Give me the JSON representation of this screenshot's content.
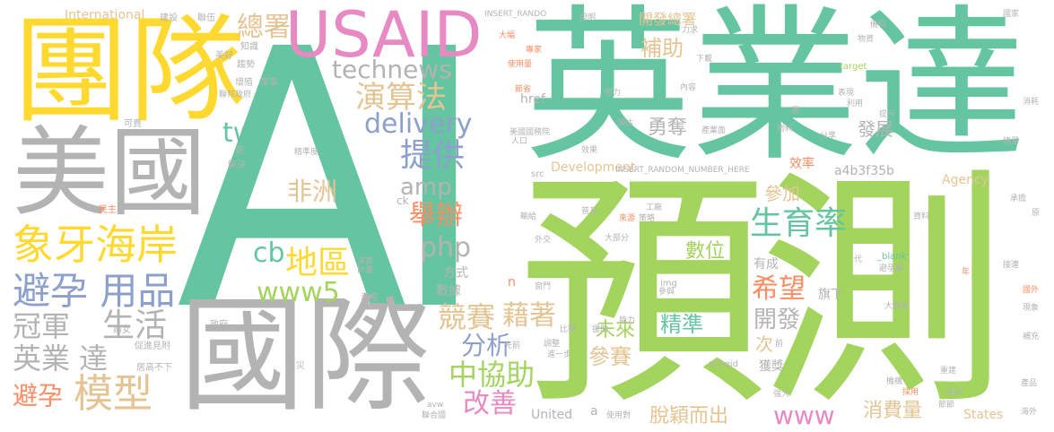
{
  "palette": {
    "teal": "#66c5a1",
    "green": "#a2d45e",
    "yellow": "#ffd92f",
    "gray": "#b3b3b3",
    "pink": "#e78ac3",
    "blue": "#8da0cb",
    "orange": "#fc8d62",
    "tan": "#e5c494"
  },
  "words": {
    "ai": "AI",
    "yingyeda": "英業達",
    "yuce": "預測",
    "tuandui": "團隊",
    "meiguo": "美國",
    "guoji": "國際",
    "usaid": "USAID",
    "xiangya": "象牙海岸",
    "biyun_yongpin": "避孕 用品",
    "guanjun": "冠軍",
    "shenghuo": "生活",
    "yingyeda2": "英業 達",
    "biyun": "避孕",
    "moxing": "模型",
    "zongshu": "總署",
    "technews": "technews",
    "suanfa": "演算法",
    "delivery": "delivery",
    "tw": "tw",
    "tigong": "提供",
    "feizhou": "非洲",
    "amp": "amp",
    "juban": "舉辦",
    "php": "php",
    "cb": "cb",
    "diqu": "地區",
    "www5": "www5",
    "jingsai": "競賽",
    "jiezhe": "藉著",
    "fenxi": "分析",
    "xiezhu": "中協助",
    "gaishan": "改善",
    "buzhu": "補助",
    "yongduo": "勇奪",
    "shengyulv": "生育率",
    "xiwang": "希望",
    "kaifa": "開發",
    "jingzhun": "精準",
    "shuwei": "數位",
    "ci": "次",
    "canjia": "參加",
    "weilai": "未來",
    "cansai": "參賽",
    "www": "www",
    "tuoying": "脫穎而出",
    "xiaofeiliang": "消費量",
    "fazhan": "發展",
    "xiaolv": "效率",
    "hash": "a4b3f35b",
    "agency": "Agency",
    "states": "States",
    "united": "United",
    "development": "Development",
    "youcheng": "有成",
    "qixia": "旗下",
    "kaifazongshu": "開發總署",
    "international": "International",
    "insert_random": "INSERT_RANDOM_NUMBER_HERE",
    "insert_rando": "INSERT_RANDO",
    "href": "href",
    "img": "img",
    "blank": "_blank'",
    "zoneid": "zoneid",
    "target": "target",
    "src": "src",
    "ck": "ck",
    "n": "n",
    "a": "a",
    "avw": "avw",
    "jiandu": "建設",
    "lianwu": "聯伍",
    "zhishi": "知識",
    "meihao": "美好",
    "qushi": "趨勢",
    "zengzhi": "增殖",
    "junshi": "軍事",
    "lianbang": "聯邦政府",
    "kegui": "可貴",
    "meiguoguowuyuan": "美國國務院",
    "xiaoguo": "效果",
    "yugu": "預估",
    "nuli": "努力",
    "chanyemian": "產業面",
    "wuliao": "物料",
    "neirong": "內容",
    "tisheng": "提升",
    "liyong": "利用",
    "biaoxian": "表現",
    "fenxiang": "分享",
    "guojia": "國家",
    "beiliao": "備料",
    "wuzi": "物資",
    "xiaohao": "消耗",
    "zongliang": "總量",
    "fangshi": "方式",
    "shuju": "數據",
    "dafen": "大部分",
    "waijiao": "外交",
    "putong": "普及",
    "ceilue": "策略",
    "gongchang": "工廠",
    "laiyuan": "來源",
    "shuyu": "輸給",
    "minzhu": "民主",
    "jieyu": "解決",
    "jingzhunjidu": "精準度",
    "renkou": "人口",
    "xiazai": "下載",
    "zhuanjia": "專家",
    "shiyongliang": "使用量",
    "jiesheng": "節省",
    "dafu": "大幅",
    "zhengming": "證明",
    "nengli": "能力",
    "yuanzhu": "援助",
    "bisai": "比賽",
    "tiaozheng": "調整",
    "jinyibu": "進一步",
    "xianqian": "先前",
    "shimen": "窗門",
    "canjian": "參與",
    "bihunyu": "避孕藥",
    "dashuju": "大數據",
    "biaoge": "表格",
    "zhengfu": "政府",
    "funv": "婦女",
    "jishu": "計畫",
    "yanxuan": "演算",
    "juli": "居高不下",
    "tihuan": "促進見附",
    "lianheguo": "聯合國",
    "shiyongzhe": "使用對",
    "huoshe": "獲獎",
    "qiangda": "強大",
    "jigou": "機構",
    "caiyong": "採用",
    "ziyou": "自由",
    "jiedi": "節節",
    "zhongda": "重建",
    "chanpin": "產品",
    "haiwai": "海外",
    "buchong": "補充",
    "xianxiang": "現象",
    "guowai": "國外",
    "jiejue": "接連",
    "zilia": "資料",
    "chengzhang": "承擔",
    "yuan": "原",
    "zai": "災",
    "jing": "更",
    "li": "力求",
    "tuan": "團",
    "nian": "年",
    "dai": "代",
    "qian": "前"
  }
}
